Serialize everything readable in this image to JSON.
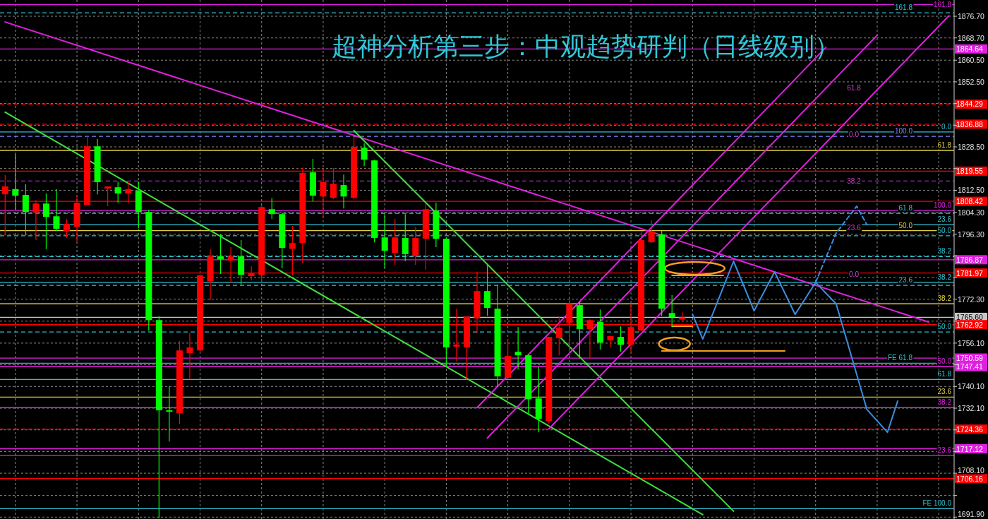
{
  "chart_data": {
    "type": "candlestick",
    "title": "超神分析第三步：中观趋势研判（日线级别）",
    "categories": [
      null,
      null,
      null,
      null,
      null,
      null,
      null,
      null,
      null,
      null,
      null,
      null,
      null,
      null,
      null,
      null,
      null,
      null,
      null,
      null,
      null,
      null,
      null,
      null,
      null,
      null,
      null,
      null,
      null,
      null,
      null,
      null,
      null,
      null,
      null,
      null,
      null,
      null,
      null,
      null,
      null,
      null,
      null,
      null,
      null,
      null,
      null,
      null,
      null,
      null,
      null,
      null,
      null,
      null,
      null,
      null,
      null,
      null,
      null,
      null,
      null,
      null,
      null,
      null,
      null,
      null,
      null,
      null,
      null,
      null,
      null,
      null,
      null,
      null,
      null,
      null,
      null,
      null,
      null,
      null,
      null,
      null,
      null,
      null,
      null,
      null,
      null,
      null,
      null,
      null,
      null,
      null,
      null
    ],
    "ohlc": [
      [
        1811.0,
        1818.1,
        1795.9,
        1813.9
      ],
      [
        1812.9,
        1825.9,
        1805.3,
        1810.5
      ],
      [
        1810.8,
        1814.7,
        1795.9,
        1804.5
      ],
      [
        1804.3,
        1808.9,
        1794.1,
        1807.6
      ],
      [
        1807.6,
        1811.3,
        1790.7,
        1802.7
      ],
      [
        1802.9,
        1812.9,
        1797.5,
        1798.3
      ],
      [
        1797.5,
        1801.9,
        1794.9,
        1800.1
      ],
      [
        1799.0,
        1810.5,
        1793.6,
        1807.9
      ],
      [
        1807.1,
        1832.7,
        1807.1,
        1828.7
      ],
      [
        1828.7,
        1831.4,
        1811.0,
        1815.5
      ],
      [
        1813.1,
        1813.9,
        1806.6,
        1813.9
      ],
      [
        1813.6,
        1815.7,
        1807.9,
        1811.3
      ],
      [
        1811.3,
        1815.5,
        1807.6,
        1812.9
      ],
      [
        1812.3,
        1815.7,
        1798.5,
        1804.5
      ],
      [
        1804.5,
        1805.3,
        1760.7,
        1764.6
      ],
      [
        1764.6,
        1766.0,
        1691.5,
        1731.3
      ],
      [
        1731.3,
        1740.1,
        1719.8,
        1730.8
      ],
      [
        1730.2,
        1756.8,
        1726.3,
        1753.4
      ],
      [
        1752.4,
        1759.7,
        1742.7,
        1754.5
      ],
      [
        1753.4,
        1781.5,
        1752.9,
        1781.1
      ],
      [
        1778.9,
        1790.7,
        1772.0,
        1788.1
      ],
      [
        1788.1,
        1796.2,
        1781.6,
        1787.0
      ],
      [
        1786.5,
        1791.5,
        1778.4,
        1788.1
      ],
      [
        1788.1,
        1794.1,
        1777.7,
        1781.3
      ],
      [
        1780.8,
        1784.5,
        1779.2,
        1782.1
      ],
      [
        1781.3,
        1806.8,
        1778.7,
        1806.3
      ],
      [
        1805.5,
        1809.7,
        1801.9,
        1803.7
      ],
      [
        1803.7,
        1804.0,
        1783.7,
        1791.2
      ],
      [
        1790.9,
        1799.3,
        1781.1,
        1793.0
      ],
      [
        1793.0,
        1820.9,
        1785.5,
        1818.9
      ],
      [
        1819.1,
        1824.1,
        1808.4,
        1810.5
      ],
      [
        1810.2,
        1820.7,
        1802.4,
        1815.5
      ],
      [
        1809.7,
        1820.7,
        1809.2,
        1814.9
      ],
      [
        1814.4,
        1818.3,
        1805.8,
        1810.2
      ],
      [
        1809.7,
        1832.4,
        1809.2,
        1828.5
      ],
      [
        1828.2,
        1829.8,
        1821.4,
        1823.8
      ],
      [
        1823.5,
        1823.8,
        1793.3,
        1794.9
      ],
      [
        1795.1,
        1803.7,
        1783.7,
        1790.2
      ],
      [
        1789.4,
        1801.9,
        1785.0,
        1795.1
      ],
      [
        1794.9,
        1803.7,
        1786.3,
        1788.9
      ],
      [
        1788.1,
        1798.8,
        1785.0,
        1794.9
      ],
      [
        1794.6,
        1807.6,
        1783.2,
        1805.5
      ],
      [
        1805.0,
        1807.9,
        1791.5,
        1794.6
      ],
      [
        1794.6,
        1794.9,
        1747.2,
        1754.5
      ],
      [
        1754.8,
        1768.8,
        1749.3,
        1755.6
      ],
      [
        1754.5,
        1765.9,
        1742.7,
        1765.9
      ],
      [
        1765.2,
        1782.4,
        1759.7,
        1775.3
      ],
      [
        1775.3,
        1785.5,
        1766.2,
        1769.1
      ],
      [
        1768.8,
        1777.7,
        1739.9,
        1743.8
      ],
      [
        1743.3,
        1757.6,
        1743.0,
        1751.4
      ],
      [
        1752.9,
        1762.0,
        1746.4,
        1751.6
      ],
      [
        1751.6,
        1752.0,
        1729.7,
        1735.4
      ],
      [
        1735.7,
        1747.2,
        1723.2,
        1728.2
      ],
      [
        1727.4,
        1758.4,
        1726.3,
        1758.4
      ],
      [
        1757.9,
        1765.9,
        1751.6,
        1761.8
      ],
      [
        1763.6,
        1772.4,
        1751.6,
        1770.6
      ],
      [
        1770.1,
        1771.4,
        1750.3,
        1761.3
      ],
      [
        1761.3,
        1764.9,
        1750.3,
        1764.6
      ],
      [
        1763.9,
        1768.5,
        1753.7,
        1756.3
      ],
      [
        1757.1,
        1758.9,
        1754.5,
        1758.7
      ],
      [
        1758.4,
        1762.3,
        1752.9,
        1755.5
      ],
      [
        1755.5,
        1770.6,
        1752.4,
        1762.0
      ],
      [
        1760.7,
        1797.5,
        1760.5,
        1794.1
      ],
      [
        1793.3,
        1801.4,
        1793.0,
        1797.2
      ],
      [
        1796.2,
        1797.5,
        1766.2,
        1768.8
      ],
      [
        1767.2,
        1773.8,
        1762.0,
        1765.7
      ],
      [
        1764.8,
        1767.5,
        1764.0,
        1765.6
      ],
      null,
      null,
      null,
      null,
      null,
      null,
      null,
      null,
      null,
      null,
      null,
      null,
      null,
      null,
      null,
      null,
      null,
      null,
      null,
      null,
      null,
      null,
      null,
      null,
      null,
      null
    ],
    "colors": [
      "#ff0000",
      "#00ff00",
      "#00ff00",
      "#ff0000",
      "#00ff00",
      "#00ff00",
      "#ff0000",
      "#ff0000",
      "#ff0000",
      "#00ff00",
      "#ff0000",
      "#00ff00",
      "#ff0000",
      "#00ff00",
      "#00ff00",
      "#00ff00",
      "#00ff00",
      "#ff0000",
      "#ff0000",
      "#ff0000",
      "#ff0000",
      "#00ff00",
      "#ff0000",
      "#00ff00",
      "#ff0000",
      "#ff0000",
      "#00ff00",
      "#00ff00",
      "#ff0000",
      "#ff0000",
      "#00ff00",
      "#ff0000",
      "#ff0000",
      "#00ff00",
      "#ff0000",
      "#00ff00",
      "#00ff00",
      "#00ff00",
      "#ff0000",
      "#00ff00",
      "#ff0000",
      "#ff0000",
      "#00ff00",
      "#00ff00",
      "#ff0000",
      "#ff0000",
      "#ff0000",
      "#00ff00",
      "#00ff00",
      "#ff0000",
      "#00ff00",
      "#00ff00",
      "#00ff00",
      "#ff0000",
      "#ff0000",
      "#ff0000",
      "#00ff00",
      "#ff0000",
      "#00ff00",
      "#ff0000",
      "#00ff00",
      "#ff0000",
      "#ff0000",
      "#ff0000",
      "#00ff00",
      "#00ff00",
      "#ff0000",
      null,
      null,
      null,
      null,
      null,
      null,
      null,
      null,
      null,
      null,
      null,
      null,
      null,
      null,
      null,
      null,
      null,
      null,
      null,
      null,
      null,
      null,
      null,
      null,
      null,
      null
    ],
    "series": [
      {
        "type": "line",
        "color": "#e020e0",
        "values": [
          1874.6,
          null,
          null,
          null,
          null,
          null,
          null,
          null,
          null,
          null,
          null,
          null,
          null,
          null,
          null,
          null,
          null,
          null,
          null,
          null,
          null,
          null,
          null,
          null,
          null,
          null,
          null,
          null,
          null,
          null,
          null,
          null,
          null,
          null,
          null,
          null,
          null,
          null,
          null,
          null,
          null,
          null,
          null,
          null,
          null,
          null,
          null,
          null,
          null,
          null,
          null,
          null,
          null,
          null,
          null,
          null,
          null,
          null,
          null,
          null,
          null,
          null,
          null,
          null,
          null,
          null,
          null,
          null,
          null,
          null,
          null,
          null,
          null,
          null,
          null,
          null,
          null,
          null,
          null,
          null,
          null,
          null,
          null,
          null,
          null,
          null,
          null,
          null,
          null,
          null,
          1763.9,
          null,
          null
        ]
      },
      {
        "type": "line",
        "color": "#40e040",
        "values": [
          1841.3,
          null,
          null,
          null,
          null,
          null,
          null,
          null,
          null,
          null,
          null,
          null,
          null,
          null,
          null,
          null,
          null,
          null,
          null,
          null,
          null,
          null,
          null,
          null,
          null,
          null,
          null,
          null,
          null,
          null,
          null,
          null,
          null,
          null,
          null,
          null,
          null,
          null,
          null,
          null,
          null,
          null,
          null,
          null,
          null,
          null,
          null,
          null,
          null,
          null,
          null,
          null,
          null,
          null,
          null,
          null,
          null,
          null,
          null,
          null,
          null,
          null,
          null,
          null,
          null,
          null,
          null,
          null,
          1692.8,
          null,
          null,
          null,
          null,
          null,
          null,
          null,
          null,
          null,
          null,
          null,
          null,
          null,
          null,
          null,
          null,
          null,
          null,
          null,
          null,
          null,
          null,
          null,
          null
        ]
      },
      {
        "type": "line",
        "color": "#40e040",
        "values": [
          null,
          null,
          null,
          null,
          null,
          null,
          null,
          null,
          null,
          null,
          null,
          null,
          null,
          null,
          null,
          null,
          null,
          null,
          null,
          null,
          null,
          null,
          null,
          null,
          null,
          null,
          null,
          null,
          null,
          null,
          null,
          null,
          null,
          null,
          1834.5,
          null,
          null,
          null,
          null,
          null,
          null,
          null,
          null,
          null,
          null,
          null,
          null,
          null,
          null,
          null,
          null,
          null,
          null,
          null,
          null,
          null,
          null,
          null,
          null,
          null,
          null,
          null,
          null,
          null,
          null,
          null,
          null,
          null,
          null,
          null,
          null,
          1694.1,
          null,
          null,
          null,
          null,
          null,
          null,
          null,
          null,
          null,
          null,
          null,
          null,
          null,
          null,
          null,
          null,
          null,
          null,
          null,
          null,
          null
        ]
      },
      {
        "type": "line",
        "color": "#e020e0",
        "values": [
          null,
          null,
          null,
          null,
          null,
          null,
          null,
          null,
          null,
          null,
          null,
          null,
          null,
          null,
          null,
          null,
          null,
          null,
          null,
          null,
          null,
          null,
          null,
          null,
          null,
          null,
          null,
          null,
          null,
          null,
          null,
          null,
          null,
          null,
          null,
          null,
          null,
          null,
          null,
          null,
          null,
          null,
          null,
          null,
          null,
          null,
          1732.3,
          null,
          null,
          null,
          null,
          null,
          null,
          null,
          null,
          null,
          null,
          null,
          null,
          null,
          null,
          null,
          null,
          null,
          null,
          null,
          null,
          null,
          null,
          null,
          null,
          null,
          null,
          null,
          null,
          null,
          null,
          null,
          null,
          null,
          1865.2,
          null,
          null,
          null,
          null,
          null,
          null,
          null,
          null,
          null,
          null,
          null,
          null
        ]
      },
      {
        "type": "line",
        "color": "#e020e0",
        "values": [
          null,
          null,
          null,
          null,
          null,
          null,
          null,
          null,
          null,
          null,
          null,
          null,
          null,
          null,
          null,
          null,
          null,
          null,
          null,
          null,
          null,
          null,
          null,
          null,
          null,
          null,
          null,
          null,
          null,
          null,
          null,
          null,
          null,
          null,
          null,
          null,
          null,
          null,
          null,
          null,
          null,
          null,
          null,
          null,
          null,
          null,
          null,
          1721.1,
          null,
          null,
          null,
          null,
          null,
          null,
          null,
          null,
          null,
          null,
          null,
          null,
          null,
          null,
          null,
          null,
          null,
          null,
          null,
          null,
          null,
          null,
          null,
          null,
          null,
          null,
          null,
          null,
          null,
          null,
          null,
          null,
          null,
          null,
          null,
          null,
          null,
          1869.7,
          null,
          null,
          null,
          null,
          null,
          null,
          null
        ]
      },
      {
        "type": "line",
        "color": "#e020e0",
        "values": [
          null,
          null,
          null,
          null,
          null,
          null,
          null,
          null,
          null,
          null,
          null,
          null,
          null,
          null,
          null,
          null,
          null,
          null,
          null,
          null,
          null,
          null,
          null,
          null,
          null,
          null,
          null,
          null,
          null,
          null,
          null,
          null,
          null,
          null,
          null,
          null,
          null,
          null,
          null,
          null,
          null,
          null,
          null,
          null,
          null,
          null,
          null,
          null,
          null,
          null,
          null,
          null,
          null,
          1724.5,
          null,
          null,
          null,
          null,
          null,
          null,
          null,
          null,
          null,
          null,
          null,
          null,
          null,
          null,
          null,
          null,
          null,
          null,
          null,
          null,
          null,
          null,
          null,
          null,
          null,
          null,
          null,
          null,
          null,
          null,
          null,
          null,
          null,
          null,
          null,
          null,
          null,
          null,
          1876.9
        ]
      },
      {
        "type": "line",
        "color": "#3a8ee0",
        "values": [
          null,
          null,
          null,
          null,
          null,
          null,
          null,
          null,
          null,
          null,
          null,
          null,
          null,
          null,
          null,
          null,
          null,
          null,
          null,
          null,
          null,
          null,
          null,
          null,
          null,
          null,
          null,
          null,
          null,
          null,
          null,
          null,
          null,
          null,
          null,
          null,
          null,
          null,
          null,
          null,
          null,
          null,
          null,
          null,
          null,
          null,
          null,
          null,
          null,
          null,
          null,
          null,
          null,
          null,
          null,
          null,
          null,
          null,
          null,
          null,
          null,
          null,
          null,
          null,
          null,
          null,
          null,
          1766.7,
          1757.6,
          null,
          null,
          1786.3,
          null,
          1768.0,
          null,
          1782.4,
          null,
          1766.7,
          null,
          1778.5,
          null,
          1770.6,
          null,
          null,
          1731.6,
          null,
          1723.2,
          1734.7,
          null,
          null,
          null,
          null,
          null
        ]
      },
      {
        "type": "line",
        "color": "#3a8ee0",
        "line_style": "dashed",
        "values": [
          null,
          null,
          null,
          null,
          null,
          null,
          null,
          null,
          null,
          null,
          null,
          null,
          null,
          null,
          null,
          null,
          null,
          null,
          null,
          null,
          null,
          null,
          null,
          null,
          null,
          null,
          null,
          null,
          null,
          null,
          null,
          null,
          null,
          null,
          null,
          null,
          null,
          null,
          null,
          null,
          null,
          null,
          null,
          null,
          null,
          null,
          null,
          null,
          null,
          null,
          null,
          null,
          null,
          null,
          null,
          null,
          null,
          null,
          null,
          null,
          null,
          null,
          null,
          null,
          null,
          null,
          null,
          null,
          null,
          null,
          null,
          null,
          null,
          null,
          null,
          null,
          null,
          null,
          null,
          1778.5,
          null,
          1796.7,
          null,
          1806.6,
          1799.8,
          null,
          null,
          null,
          null,
          null,
          null,
          null,
          null
        ]
      },
      {
        "type": "line",
        "color": "#f0a020",
        "values": [
          null,
          null,
          null,
          null,
          null,
          null,
          null,
          null,
          null,
          null,
          null,
          null,
          null,
          null,
          null,
          null,
          null,
          null,
          null,
          null,
          null,
          null,
          null,
          null,
          null,
          null,
          null,
          null,
          null,
          null,
          null,
          null,
          null,
          null,
          null,
          null,
          null,
          null,
          null,
          null,
          null,
          null,
          null,
          null,
          null,
          null,
          null,
          null,
          null,
          null,
          null,
          null,
          null,
          null,
          null,
          null,
          null,
          null,
          null,
          null,
          null,
          null,
          null,
          null,
          null,
          1781.1,
          null,
          null,
          null,
          null,
          1781.1,
          null,
          null,
          null,
          null,
          null,
          null,
          null,
          null,
          null,
          null,
          null,
          null,
          null,
          null,
          null,
          null,
          null,
          null,
          null,
          null,
          null,
          null
        ]
      },
      {
        "type": "line",
        "color": "#f0a020",
        "values": [
          null,
          null,
          null,
          null,
          null,
          null,
          null,
          null,
          null,
          null,
          null,
          null,
          null,
          null,
          null,
          null,
          null,
          null,
          null,
          null,
          null,
          null,
          null,
          null,
          null,
          null,
          null,
          null,
          null,
          null,
          null,
          null,
          null,
          null,
          null,
          null,
          null,
          null,
          null,
          null,
          null,
          null,
          null,
          null,
          null,
          null,
          null,
          null,
          null,
          null,
          null,
          null,
          null,
          null,
          null,
          null,
          null,
          null,
          null,
          null,
          null,
          null,
          null,
          null,
          null,
          1762.3,
          null,
          1762.3,
          null,
          null,
          null,
          null,
          null,
          null,
          null,
          null,
          null,
          null,
          null,
          null,
          null,
          null,
          null,
          null,
          null,
          null,
          null,
          null,
          null,
          null,
          null,
          null,
          null
        ]
      },
      {
        "type": "line",
        "color": "#f0a020",
        "values": [
          null,
          null,
          null,
          null,
          null,
          null,
          null,
          null,
          null,
          null,
          null,
          null,
          null,
          null,
          null,
          null,
          null,
          null,
          null,
          null,
          null,
          null,
          null,
          null,
          null,
          null,
          null,
          null,
          null,
          null,
          null,
          null,
          null,
          null,
          null,
          null,
          null,
          null,
          null,
          null,
          null,
          null,
          null,
          null,
          null,
          null,
          null,
          null,
          null,
          null,
          null,
          null,
          null,
          null,
          null,
          null,
          null,
          null,
          null,
          null,
          null,
          null,
          null,
          null,
          1753.2,
          null,
          null,
          null,
          null,
          null,
          null,
          null,
          null,
          null,
          null,
          null,
          1753.2,
          null,
          null,
          null,
          null,
          null,
          null,
          null,
          null,
          null,
          null,
          null,
          null,
          null,
          null,
          null,
          null
        ]
      }
    ],
    "ylim": [
      1691.2,
      1882.7
    ],
    "yticks": [
      {
        "value": 1876.7,
        "label": "1876.70"
      },
      {
        "value": 1868.7,
        "label": "1868.70"
      },
      {
        "value": 1860.5,
        "label": "1860.50"
      },
      {
        "value": 1852.5,
        "label": "1852.50"
      },
      {
        "value": 1844.5,
        "label": null
      },
      {
        "value": 1836.5,
        "label": null
      },
      {
        "value": 1828.5,
        "label": "1828.50"
      },
      {
        "value": 1820.5,
        "label": null
      },
      {
        "value": 1812.5,
        "label": "1812.50"
      },
      {
        "value": 1804.3,
        "label": "1804.30"
      },
      {
        "value": 1796.3,
        "label": "1796.30"
      },
      {
        "value": 1788.3,
        "label": null
      },
      {
        "value": 1780.3,
        "label": null
      },
      {
        "value": 1772.3,
        "label": "1772.30"
      },
      {
        "value": 1764.2,
        "label": null
      },
      {
        "value": 1756.1,
        "label": "1756.10"
      },
      {
        "value": 1748.1,
        "label": null
      },
      {
        "value": 1740.1,
        "label": "1740.10"
      },
      {
        "value": 1732.1,
        "label": "1732.10"
      },
      {
        "value": 1724.1,
        "label": null
      },
      {
        "value": 1716.1,
        "label": null
      },
      {
        "value": 1708.1,
        "label": "1708.10"
      },
      {
        "value": 1699.9,
        "label": null
      },
      {
        "value": 1691.9,
        "label": "1691.90"
      }
    ],
    "grid": true,
    "ref_lines": [
      {
        "axis": "y",
        "value": 1864.64,
        "label": "1864.64",
        "color": "#e020e0"
      },
      {
        "axis": "y",
        "value": 1844.29,
        "label": "1844.29",
        "color": "#ff0000",
        "line_style": "dashed"
      },
      {
        "axis": "y",
        "value": 1836.88,
        "label": "1836.88",
        "color": "#ff0000",
        "line_style": "dashed"
      },
      {
        "axis": "y",
        "value": 1819.55,
        "label": "1819.55",
        "color": "#ff0000"
      },
      {
        "axis": "y",
        "value": 1808.42,
        "label": "1808.42",
        "color": "#ff0000"
      },
      {
        "axis": "y",
        "value": 1786.87,
        "label": "1786.87",
        "color": "#e020e0"
      },
      {
        "axis": "y",
        "value": 1781.97,
        "label": "1781.97",
        "color": "#ff0000"
      },
      {
        "axis": "y",
        "value": 1765.6,
        "label": "1765.60",
        "color": "#c8c8c8"
      },
      {
        "axis": "y",
        "value": 1762.92,
        "label": "1762.92",
        "color": "#ff0000"
      },
      {
        "axis": "y",
        "value": 1750.59,
        "label": "1750.59",
        "color": "#e020e0"
      },
      {
        "axis": "y",
        "value": 1747.41,
        "label": "1747.41",
        "color": "#e020e0"
      },
      {
        "axis": "y",
        "value": 1724.36,
        "label": "1724.36",
        "color": "#ff0000",
        "line_style": "dashed"
      },
      {
        "axis": "y",
        "value": 1717.12,
        "label": "1717.12",
        "color": "#e020e0"
      },
      {
        "axis": "y",
        "value": 1706.16,
        "label": "1706.16",
        "color": "#ff0000"
      },
      {
        "axis": "y",
        "value": 1881.0,
        "color": "#e020e0"
      },
      {
        "axis": "y",
        "value": 1878.0,
        "color": "#30c0d0",
        "line_style": "dashed"
      },
      {
        "axis": "y",
        "value": 1834.0,
        "color": "#30c0d0"
      },
      {
        "axis": "y",
        "value": 1832.4,
        "color": "#8080ff",
        "line_style": "dashed"
      },
      {
        "axis": "y",
        "value": 1827.2,
        "color": "#e0d040"
      },
      {
        "axis": "y",
        "value": 1815.9,
        "color": "#a030c0",
        "line_style": "dashed"
      },
      {
        "axis": "y",
        "value": 1805.0,
        "color": "#e020e0"
      },
      {
        "axis": "y",
        "value": 1804.0,
        "color": "#30c0d0",
        "line_style": "dashed"
      },
      {
        "axis": "y",
        "value": 1799.8,
        "color": "#30c0d0"
      },
      {
        "axis": "y",
        "value": 1797.6,
        "color": "#e0d040"
      },
      {
        "axis": "y",
        "value": 1795.7,
        "color": "#30c0d0",
        "line_style": "dashed"
      },
      {
        "axis": "y",
        "value": 1788.0,
        "color": "#30c0d0",
        "line_style": "dashed"
      },
      {
        "axis": "y",
        "value": 1778.5,
        "color": "#30c0d0"
      },
      {
        "axis": "y",
        "value": 1777.4,
        "color": "#30c0d0",
        "line_style": "dashed"
      },
      {
        "axis": "y",
        "value": 1770.6,
        "color": "#e0d040"
      },
      {
        "axis": "y",
        "value": 1760.2,
        "color": "#30c0d0",
        "line_style": "dashed"
      },
      {
        "axis": "y",
        "value": 1748.7,
        "color": "#30c0d0"
      },
      {
        "axis": "y",
        "value": 1742.7,
        "color": "#30c0d0"
      },
      {
        "axis": "y",
        "value": 1736.2,
        "color": "#e0d040"
      },
      {
        "axis": "y",
        "value": 1732.3,
        "color": "#e020e0"
      },
      {
        "axis": "y",
        "value": 1714.6,
        "color": "#e020e0"
      },
      {
        "axis": "y",
        "value": 1695.0,
        "color": "#30c0d0"
      }
    ],
    "annotations": [
      {
        "text": "161.8",
        "y": 1881.0
      },
      {
        "text": "161.8",
        "y": 1878.0
      },
      {
        "text": "0.0",
        "y": 1834.0
      },
      {
        "text": "100.0",
        "y": 1832.4
      },
      {
        "text": "61.8",
        "y": 1827.2
      },
      {
        "text": "100.0",
        "y": 1805.0
      },
      {
        "text": "61.8",
        "y": 1804.0
      },
      {
        "text": "23.6",
        "y": 1799.8
      },
      {
        "text": "50.0",
        "y": 1797.6
      },
      {
        "text": "50.0",
        "y": 1795.7
      },
      {
        "text": "38.2",
        "y": 1788.0
      },
      {
        "text": "38.2",
        "y": 1778.5
      },
      {
        "text": "23.6",
        "y": 1777.4
      },
      {
        "text": "38.2",
        "y": 1770.6
      },
      {
        "text": "50.0",
        "y": 1760.2
      },
      {
        "text": "50.0",
        "y": 1747.41
      },
      {
        "text": "61.8",
        "y": 1742.7
      },
      {
        "text": "23.6",
        "y": 1736.2
      },
      {
        "text": "38.2",
        "y": 1732.3
      },
      {
        "text": "23.6",
        "y": 1714.6
      },
      {
        "text": "FE 61.8",
        "y": 1748.7
      },
      {
        "text": "FE 100.0",
        "y": 1695.0
      },
      "61.8",
      "0.0",
      "38.2",
      "23.6",
      "0.0"
    ]
  }
}
